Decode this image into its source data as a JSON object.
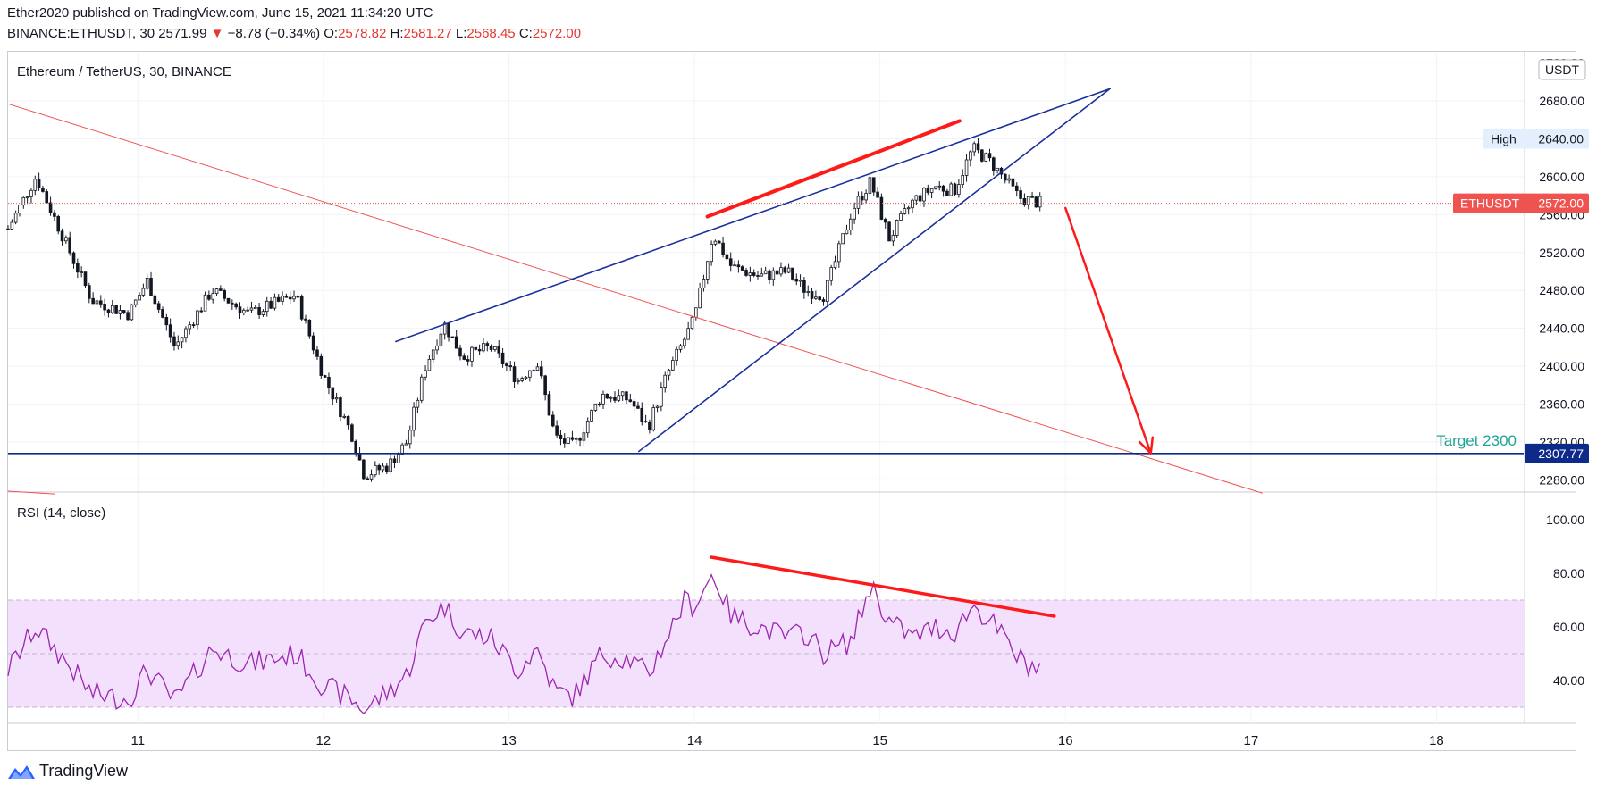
{
  "header": {
    "publisher_line": "Ether2020 published on TradingView.com, June 15, 2021 11:34:20 UTC",
    "symbol_interval": "BINANCE:ETHUSDT, 30",
    "last": "2571.99",
    "change_arrow": "▼",
    "change": "−8.78 (−0.34%)",
    "o_label": "O:",
    "o_value": "2578.82",
    "h_label": "H:",
    "h_value": "2581.27",
    "l_label": "L:",
    "l_value": "2568.45",
    "c_label": "C:",
    "c_value": "2572.00"
  },
  "footer": {
    "brand": "TradingView",
    "logo_icon": "tradingview-logo-icon"
  },
  "colors": {
    "up": "#26a69a",
    "down": "#ef5350",
    "candle": "#131722",
    "wedge": "#1a2f9e",
    "trend": "#ef5350",
    "annotation": "#ff1a1a",
    "target": "#0d2a8a",
    "rsi": "#9c27b0",
    "rsi_band": "#f3e0fc"
  },
  "chart_data": [
    {
      "type": "candlestick",
      "title": "Ethereum / TetherUS, 30, BINANCE",
      "currency": "USDT",
      "x_ticks": [
        "11",
        "12",
        "13",
        "14",
        "15",
        "16",
        "17",
        "18"
      ],
      "x_range_days": [
        10.3,
        18.47
      ],
      "y_range": [
        2268,
        2732
      ],
      "y_ticks": [
        2280.0,
        2320.0,
        2360.0,
        2400.0,
        2440.0,
        2480.0,
        2520.0,
        2560.0,
        2600.0,
        2640.0,
        2680.0,
        2720.0
      ],
      "waypoints": [
        {
          "x": 10.3,
          "y": 2545
        },
        {
          "x": 10.45,
          "y": 2600
        },
        {
          "x": 10.6,
          "y": 2535
        },
        {
          "x": 10.75,
          "y": 2470
        },
        {
          "x": 10.95,
          "y": 2455
        },
        {
          "x": 11.05,
          "y": 2490
        },
        {
          "x": 11.2,
          "y": 2420
        },
        {
          "x": 11.4,
          "y": 2480
        },
        {
          "x": 11.6,
          "y": 2455
        },
        {
          "x": 11.85,
          "y": 2475
        },
        {
          "x": 12.0,
          "y": 2390
        },
        {
          "x": 12.15,
          "y": 2330
        },
        {
          "x": 12.22,
          "y": 2285
        },
        {
          "x": 12.35,
          "y": 2295
        },
        {
          "x": 12.45,
          "y": 2320
        },
        {
          "x": 12.55,
          "y": 2400
        },
        {
          "x": 12.65,
          "y": 2445
        },
        {
          "x": 12.75,
          "y": 2410
        },
        {
          "x": 12.9,
          "y": 2420
        },
        {
          "x": 13.05,
          "y": 2385
        },
        {
          "x": 13.15,
          "y": 2405
        },
        {
          "x": 13.25,
          "y": 2325
        },
        {
          "x": 13.35,
          "y": 2315
        },
        {
          "x": 13.5,
          "y": 2370
        },
        {
          "x": 13.65,
          "y": 2365
        },
        {
          "x": 13.75,
          "y": 2335
        },
        {
          "x": 13.85,
          "y": 2390
        },
        {
          "x": 14.0,
          "y": 2450
        },
        {
          "x": 14.1,
          "y": 2540
        },
        {
          "x": 14.2,
          "y": 2505
        },
        {
          "x": 14.35,
          "y": 2495
        },
        {
          "x": 14.5,
          "y": 2500
        },
        {
          "x": 14.6,
          "y": 2480
        },
        {
          "x": 14.7,
          "y": 2475
        },
        {
          "x": 14.85,
          "y": 2565
        },
        {
          "x": 14.95,
          "y": 2595
        },
        {
          "x": 15.05,
          "y": 2535
        },
        {
          "x": 15.18,
          "y": 2575
        },
        {
          "x": 15.3,
          "y": 2590
        },
        {
          "x": 15.4,
          "y": 2585
        },
        {
          "x": 15.5,
          "y": 2630
        },
        {
          "x": 15.6,
          "y": 2615
        },
        {
          "x": 15.75,
          "y": 2578
        },
        {
          "x": 15.87,
          "y": 2572
        }
      ],
      "wedge_upper": [
        {
          "x": 12.39,
          "y": 2426
        },
        {
          "x": 16.24,
          "y": 2693
        }
      ],
      "wedge_lower": [
        {
          "x": 13.7,
          "y": 2310
        },
        {
          "x": 16.24,
          "y": 2693
        }
      ],
      "descending_trendline": [
        {
          "x": 10.3,
          "y": 2677
        },
        {
          "x": 17.06,
          "y": 2266
        }
      ],
      "descending_trendline_stub": [
        {
          "x": 10.3,
          "y": 2268
        },
        {
          "x": 10.55,
          "y": 2265
        }
      ],
      "target_line_value": 2307.77,
      "target_label": "Target 2300",
      "target_badge": "2307.77",
      "high_label": "High",
      "high_value": "2640.00",
      "high_value_num": 2640,
      "last_label": "ETHUSDT",
      "last_value": "2572.00",
      "last_value_num": 2572,
      "annotation_resistance": [
        {
          "x": 14.07,
          "y": 2558
        },
        {
          "x": 15.43,
          "y": 2659
        }
      ],
      "annotation_arrow": [
        {
          "x": 16.0,
          "y": 2567
        },
        {
          "x": 16.46,
          "y": 2308
        }
      ]
    },
    {
      "type": "line",
      "title": "RSI (14, close)",
      "y_range": [
        24,
        110
      ],
      "y_ticks": [
        40.0,
        60.0,
        80.0,
        100.0
      ],
      "band": [
        30,
        70
      ],
      "midline": 50,
      "waypoints": [
        {
          "x": 10.3,
          "y": 44
        },
        {
          "x": 10.45,
          "y": 60
        },
        {
          "x": 10.6,
          "y": 48
        },
        {
          "x": 10.75,
          "y": 35
        },
        {
          "x": 10.95,
          "y": 33
        },
        {
          "x": 11.05,
          "y": 44
        },
        {
          "x": 11.2,
          "y": 32
        },
        {
          "x": 11.4,
          "y": 52
        },
        {
          "x": 11.6,
          "y": 46
        },
        {
          "x": 11.85,
          "y": 50
        },
        {
          "x": 12.0,
          "y": 38
        },
        {
          "x": 12.15,
          "y": 33
        },
        {
          "x": 12.22,
          "y": 29
        },
        {
          "x": 12.35,
          "y": 36
        },
        {
          "x": 12.45,
          "y": 42
        },
        {
          "x": 12.55,
          "y": 62
        },
        {
          "x": 12.65,
          "y": 68
        },
        {
          "x": 12.75,
          "y": 58
        },
        {
          "x": 12.9,
          "y": 56
        },
        {
          "x": 13.05,
          "y": 44
        },
        {
          "x": 13.15,
          "y": 52
        },
        {
          "x": 13.25,
          "y": 36
        },
        {
          "x": 13.35,
          "y": 34
        },
        {
          "x": 13.5,
          "y": 50
        },
        {
          "x": 13.65,
          "y": 48
        },
        {
          "x": 13.75,
          "y": 42
        },
        {
          "x": 13.85,
          "y": 56
        },
        {
          "x": 13.95,
          "y": 70
        },
        {
          "x": 14.0,
          "y": 68
        },
        {
          "x": 14.1,
          "y": 80
        },
        {
          "x": 14.2,
          "y": 64
        },
        {
          "x": 14.35,
          "y": 60
        },
        {
          "x": 14.5,
          "y": 56
        },
        {
          "x": 14.6,
          "y": 58
        },
        {
          "x": 14.7,
          "y": 50
        },
        {
          "x": 14.85,
          "y": 55
        },
        {
          "x": 14.95,
          "y": 76
        },
        {
          "x": 15.05,
          "y": 62
        },
        {
          "x": 15.18,
          "y": 56
        },
        {
          "x": 15.3,
          "y": 60
        },
        {
          "x": 15.4,
          "y": 58
        },
        {
          "x": 15.5,
          "y": 68
        },
        {
          "x": 15.6,
          "y": 62
        },
        {
          "x": 15.75,
          "y": 48
        },
        {
          "x": 15.87,
          "y": 44
        }
      ],
      "annotation_divergence": [
        {
          "x": 14.09,
          "y": 86
        },
        {
          "x": 15.94,
          "y": 64
        }
      ]
    }
  ]
}
